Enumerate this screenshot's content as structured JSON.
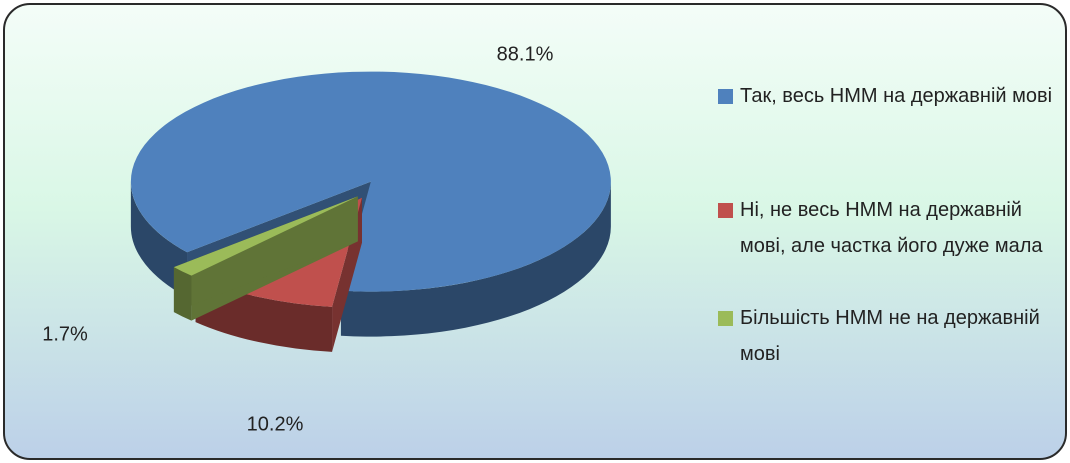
{
  "chart_data": {
    "type": "pie3d",
    "categories": [
      "Так, весь НММ на державній мові",
      "Ні, не весь НММ на державній мові, але частка його дуже мала",
      "Більшість НММ не на державній мові"
    ],
    "values": [
      88.1,
      10.2,
      1.7
    ],
    "value_labels": [
      "88.1%",
      "10.2%",
      "1.7%"
    ],
    "colors": [
      "#4f81bd",
      "#c0504d",
      "#9bbb59"
    ],
    "legend": "right"
  }
}
